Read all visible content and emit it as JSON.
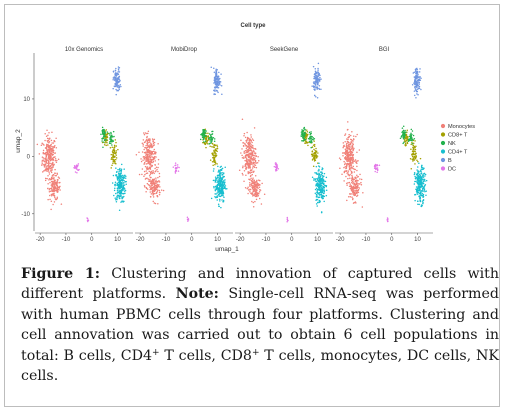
{
  "chart_data": {
    "type": "scatter",
    "legend_title": "Cell type",
    "legend_position": "right",
    "xlabel": "umap_1",
    "ylabel": "umap_2",
    "xlim": [
      -22,
      16
    ],
    "ylim": [
      -13,
      18
    ],
    "xticks": [
      -20,
      -10,
      0,
      10
    ],
    "yticks": [
      10,
      0,
      -10
    ],
    "grid": false,
    "panels": [
      "10x Genomics",
      "MobiDrop",
      "SeekGene",
      "BGI"
    ],
    "series": [
      {
        "name": "Monocytes",
        "color": "#f08078",
        "clusters": [
          {
            "cx": -16.5,
            "cy": 0,
            "sx": 2.4,
            "sy": 3.3,
            "n": 260
          },
          {
            "cx": -14.5,
            "cy": -5.5,
            "sx": 2.2,
            "sy": 2.0,
            "n": 140
          }
        ]
      },
      {
        "name": "CD8+ T",
        "color": "#a3a000",
        "clusters": [
          {
            "cx": 5.5,
            "cy": 3.0,
            "sx": 0.9,
            "sy": 1.2,
            "n": 40
          },
          {
            "cx": 8.8,
            "cy": 0.5,
            "sx": 1.0,
            "sy": 1.8,
            "n": 60
          }
        ]
      },
      {
        "name": "NK",
        "color": "#22b14c",
        "clusters": [
          {
            "cx": 4.6,
            "cy": 3.8,
            "sx": 0.8,
            "sy": 1.0,
            "n": 50
          },
          {
            "cx": 7.5,
            "cy": 3.2,
            "sx": 0.9,
            "sy": 1.0,
            "n": 30
          }
        ]
      },
      {
        "name": "CD4+ T",
        "color": "#17becf",
        "clusters": [
          {
            "cx": 11.0,
            "cy": -5.0,
            "sx": 1.8,
            "sy": 2.8,
            "n": 230
          }
        ]
      },
      {
        "name": "B",
        "color": "#6f95e0",
        "clusters": [
          {
            "cx": 9.8,
            "cy": 13.2,
            "sx": 1.2,
            "sy": 2.0,
            "n": 110
          }
        ]
      },
      {
        "name": "DC",
        "color": "#e377e8",
        "clusters": [
          {
            "cx": -6.0,
            "cy": -2.0,
            "sx": 0.9,
            "sy": 0.6,
            "n": 22
          },
          {
            "cx": -1.5,
            "cy": -11.0,
            "sx": 0.3,
            "sy": 0.4,
            "n": 6
          }
        ]
      }
    ]
  },
  "caption": {
    "label": "Figure 1:",
    "title": " Clustering and innovation of captured cells with different platforms. ",
    "note_label": "Note:",
    "body_1": " Single-cell RNA-seq was performed with human PBMC cells through four platforms. Clustering and cell annovation was carried out to obtain 6 cell populations in total: B cells, CD4",
    "sup_1": "+",
    "body_2": " T cells, CD8",
    "sup_2": "+",
    "body_3": " T cells, monocytes, DC cells, NK cells."
  }
}
